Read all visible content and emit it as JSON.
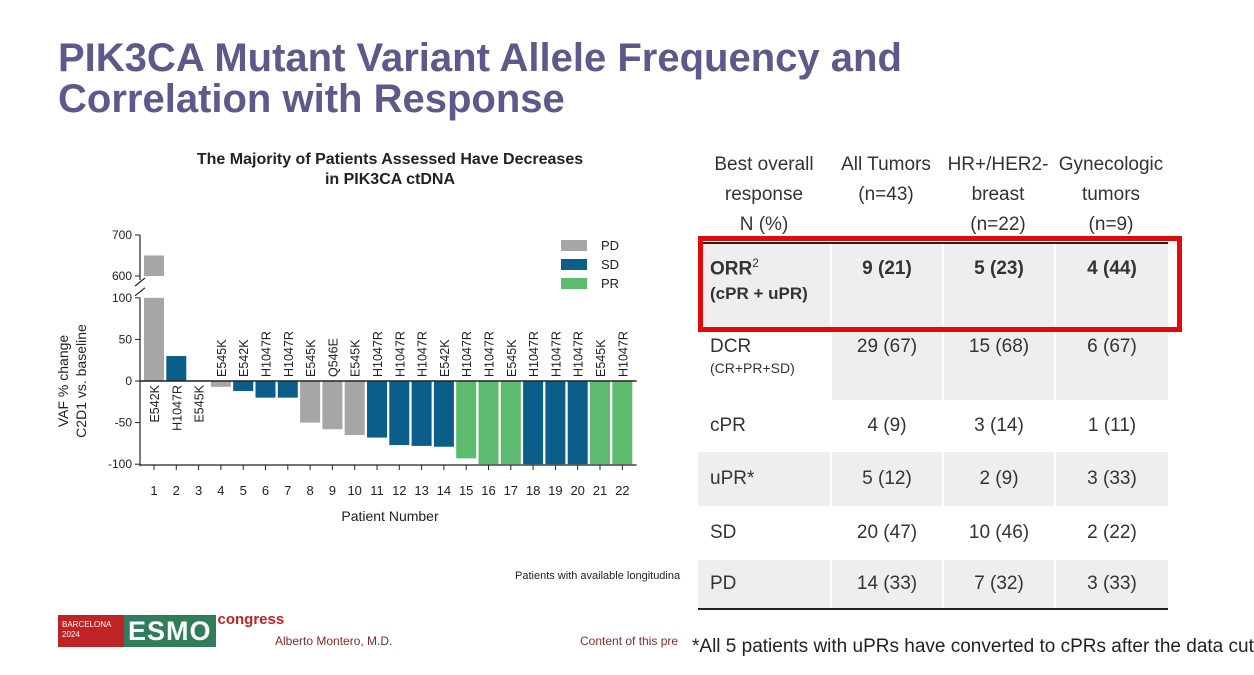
{
  "slide": {
    "title_line1": "PIK3CA Mutant Variant Allele Frequency and",
    "title_line2": "Correlation with Response",
    "author": "Alberto Montero, M.D.",
    "content_note": "Content of this pre",
    "chart_footnote": "Patients with available longitudina",
    "bottom_note": "*All 5 patients with uPRs have converted to cPRs after the data cut",
    "logo": {
      "city": "BARCELONA",
      "year": "2024",
      "brand": "ESMO",
      "congress": "congress"
    }
  },
  "chart_data": {
    "type": "bar",
    "title_line1": "The Majority of Patients Assessed Have Decreases",
    "title_line2": "in PIK3CA ctDNA",
    "xlabel": "Patient Number",
    "ylabel_line1": "VAF % change",
    "ylabel_line2": "C2D1 vs. baseline",
    "y_ticks_lower": [
      -100,
      -50,
      0,
      50,
      100
    ],
    "y_ticks_upper": [
      600,
      700
    ],
    "y_break": [
      100,
      600
    ],
    "categories": [
      "1",
      "2",
      "3",
      "4",
      "5",
      "6",
      "7",
      "8",
      "9",
      "10",
      "11",
      "12",
      "13",
      "14",
      "15",
      "16",
      "17",
      "18",
      "19",
      "20",
      "21",
      "22"
    ],
    "values": [
      650,
      30,
      1,
      -7,
      -12,
      -20,
      -20,
      -50,
      -58,
      -65,
      -68,
      -77,
      -78,
      -79,
      -93,
      -100,
      -100,
      -100,
      -100,
      -100,
      -100,
      -100
    ],
    "responses": [
      "PD",
      "SD",
      "PD",
      "PD",
      "SD",
      "SD",
      "SD",
      "PD",
      "PD",
      "PD",
      "SD",
      "SD",
      "SD",
      "SD",
      "PR",
      "PR",
      "PR",
      "SD",
      "SD",
      "SD",
      "PR",
      "PR"
    ],
    "mutations": [
      "E542K",
      "H1047R",
      "E545K",
      "E545K",
      "E542K",
      "H1047R",
      "H1047R",
      "E545K",
      "Q546E",
      "E545K",
      "H1047R",
      "H1047R",
      "H1047R",
      "E542K",
      "H1047R",
      "H1047R",
      "E545K",
      "H1047R",
      "H1047R",
      "H1047R",
      "E545K",
      "H1047R"
    ],
    "legend": [
      {
        "label": "PD",
        "color": "#a6a6a6"
      },
      {
        "label": "SD",
        "color": "#0b5e8a"
      },
      {
        "label": "PR",
        "color": "#5cbb6e"
      }
    ]
  },
  "table": {
    "headers": [
      [
        "Best overall",
        "response",
        "N (%)"
      ],
      [
        "All Tumors",
        "(n=43)"
      ],
      [
        "HR+/HER2-",
        "breast",
        "(n=22)"
      ],
      [
        "Gynecologic",
        "tumors",
        "(n=9)"
      ]
    ],
    "rows": [
      {
        "label": "ORR",
        "sup": "2",
        "sub": "(cPR + uPR)",
        "values": [
          "9 (21)",
          "5 (23)",
          "4 (44)"
        ]
      },
      {
        "label": "DCR",
        "sub": "(CR+PR+SD)",
        "values": [
          "29 (67)",
          "15 (68)",
          "6 (67)"
        ]
      },
      {
        "label": "cPR",
        "values": [
          "4 (9)",
          "3 (14)",
          "1 (11)"
        ]
      },
      {
        "label": "uPR*",
        "values": [
          "5 (12)",
          "2 (9)",
          "3 (33)"
        ]
      },
      {
        "label": "SD",
        "values": [
          "20 (47)",
          "10 (46)",
          "2 (22)"
        ]
      },
      {
        "label": "PD",
        "values": [
          "14 (33)",
          "7 (32)",
          "3 (33)"
        ]
      }
    ]
  }
}
